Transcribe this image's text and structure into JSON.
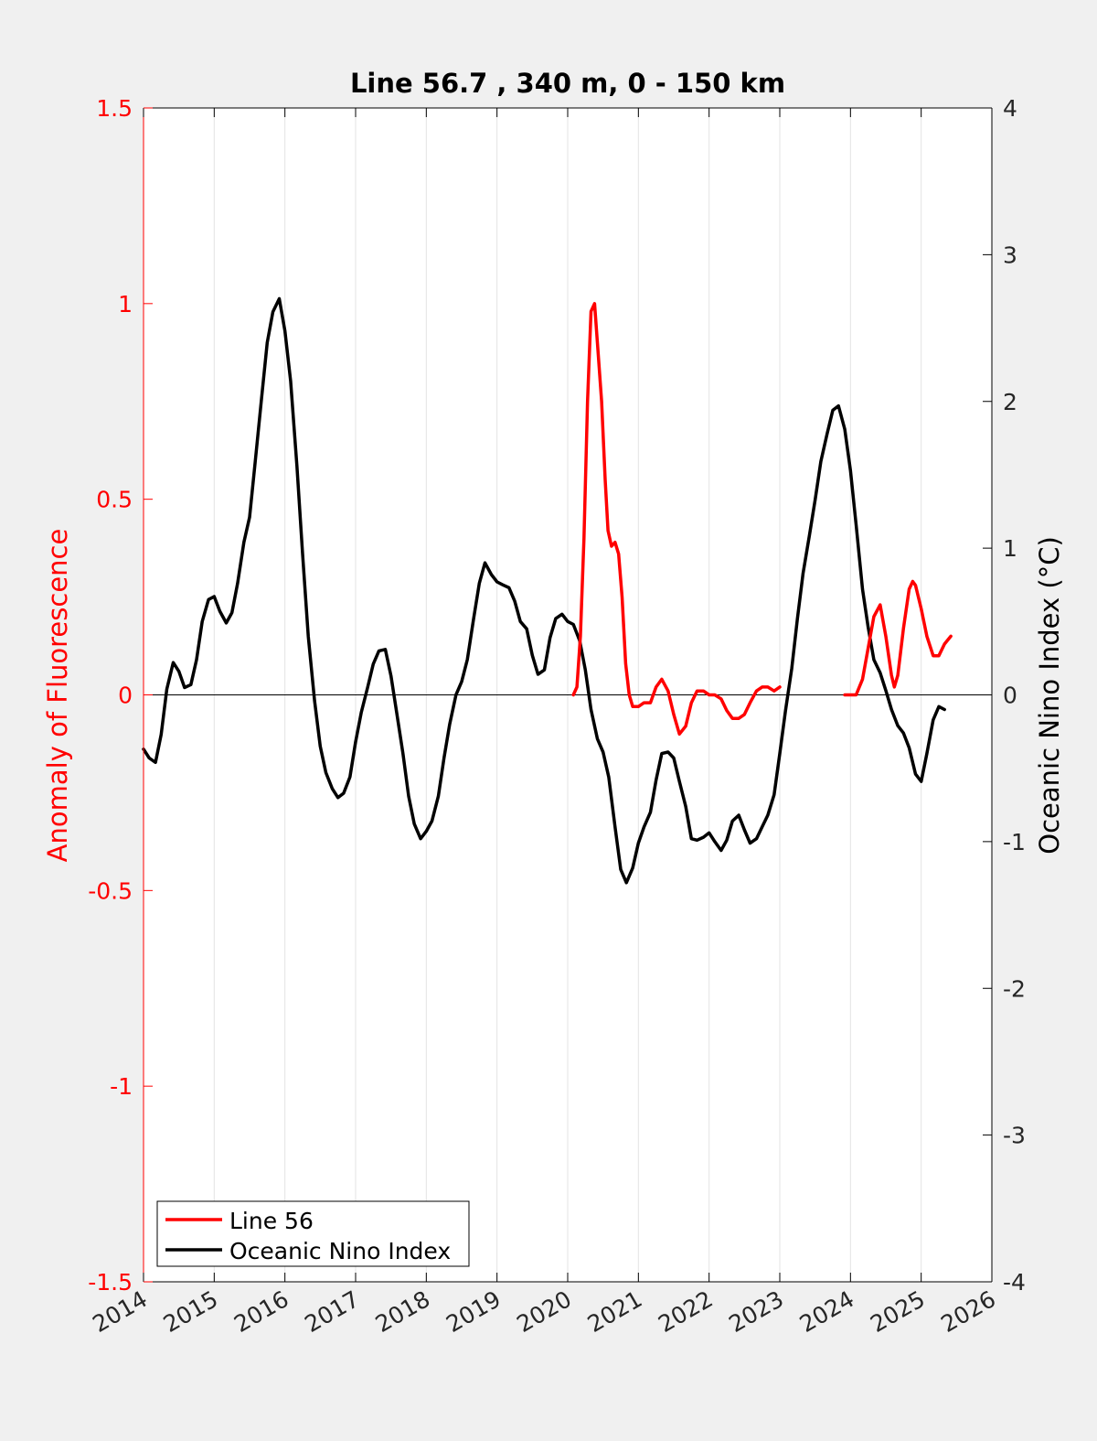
{
  "chart_data": {
    "type": "line",
    "title": "Line 56.7 , 340 m, 0 - 150 km",
    "xlabel": "",
    "xlim": [
      2014,
      2026
    ],
    "xticks": [
      "2014",
      "2015",
      "2016",
      "2017",
      "2018",
      "2019",
      "2020",
      "2021",
      "2022",
      "2023",
      "2024",
      "2025",
      "2026"
    ],
    "grid": "vertical",
    "legend_position": "bottom-left",
    "left_axis": {
      "label": "Anomaly of Fluorescence",
      "color": "#ff0000",
      "ylim": [
        -1.5,
        1.5
      ],
      "ticks": [
        "-1.5",
        "-1",
        "-0.5",
        "0",
        "0.5",
        "1",
        "1.5"
      ]
    },
    "right_axis": {
      "label": "Oceanic Nino Index (°C)",
      "color": "#000000",
      "ylim": [
        -4,
        4
      ],
      "ticks": [
        "-4",
        "-3",
        "-2",
        "-1",
        "0",
        "1",
        "2",
        "3",
        "4"
      ]
    },
    "series": [
      {
        "name": "Line 56",
        "color": "#ff0000",
        "axis": "left",
        "segments": [
          {
            "x": [
              2020.08,
              2020.13,
              2020.18,
              2020.23,
              2020.28,
              2020.33,
              2020.38,
              2020.42,
              2020.48,
              2020.53,
              2020.57,
              2020.62,
              2020.67,
              2020.72,
              2020.77,
              2020.82,
              2020.87,
              2020.92,
              2021.0,
              2021.08,
              2021.17,
              2021.25,
              2021.33,
              2021.42,
              2021.5,
              2021.58,
              2021.67,
              2021.75,
              2021.83,
              2021.92,
              2022.0,
              2022.08,
              2022.17,
              2022.25,
              2022.33,
              2022.42,
              2022.5,
              2022.58,
              2022.67,
              2022.75,
              2022.83,
              2022.92,
              2023.0
            ],
            "y": [
              0.0,
              0.02,
              0.15,
              0.4,
              0.75,
              0.98,
              1.0,
              0.9,
              0.75,
              0.55,
              0.42,
              0.38,
              0.39,
              0.36,
              0.25,
              0.08,
              0.0,
              -0.03,
              -0.03,
              -0.02,
              -0.02,
              0.02,
              0.04,
              0.01,
              -0.05,
              -0.1,
              -0.08,
              -0.02,
              0.01,
              0.01,
              0.0,
              0.0,
              -0.01,
              -0.04,
              -0.06,
              -0.06,
              -0.05,
              -0.02,
              0.01,
              0.02,
              0.02,
              0.01,
              0.02
            ]
          },
          {
            "x": [
              2023.92,
              2024.0,
              2024.08,
              2024.17,
              2024.25,
              2024.33,
              2024.42,
              2024.5,
              2024.58,
              2024.62,
              2024.67,
              2024.75,
              2024.83,
              2024.88,
              2024.92,
              2025.0,
              2025.08,
              2025.17,
              2025.25,
              2025.33,
              2025.42
            ],
            "y": [
              0.0,
              0.0,
              0.0,
              0.04,
              0.12,
              0.2,
              0.23,
              0.15,
              0.05,
              0.02,
              0.05,
              0.17,
              0.27,
              0.29,
              0.28,
              0.22,
              0.15,
              0.1,
              0.1,
              0.13,
              0.15
            ]
          }
        ]
      },
      {
        "name": "Oceanic Nino Index",
        "color": "#000000",
        "axis": "right",
        "segments": [
          {
            "x": [
              2014.0,
              2014.08,
              2014.17,
              2014.25,
              2014.33,
              2014.42,
              2014.5,
              2014.58,
              2014.67,
              2014.75,
              2014.83,
              2014.92,
              2015.0,
              2015.08,
              2015.17,
              2015.25,
              2015.33,
              2015.42,
              2015.5,
              2015.58,
              2015.67,
              2015.75,
              2015.83,
              2015.92,
              2016.0,
              2016.08,
              2016.17,
              2016.25,
              2016.33,
              2016.42,
              2016.5,
              2016.58,
              2016.67,
              2016.75,
              2016.83,
              2016.92,
              2017.0,
              2017.08,
              2017.17,
              2017.25,
              2017.33,
              2017.42,
              2017.5,
              2017.58,
              2017.67,
              2017.75,
              2017.83,
              2017.92,
              2018.0,
              2018.08,
              2018.17,
              2018.25,
              2018.33,
              2018.42,
              2018.5,
              2018.58,
              2018.67,
              2018.75,
              2018.83,
              2018.92,
              2019.0,
              2019.08,
              2019.17,
              2019.25,
              2019.33,
              2019.42,
              2019.5,
              2019.58,
              2019.67,
              2019.75,
              2019.83,
              2019.92,
              2020.0,
              2020.08,
              2020.17,
              2020.25,
              2020.33,
              2020.42,
              2020.5,
              2020.58,
              2020.67,
              2020.75,
              2020.83,
              2020.92,
              2021.0,
              2021.08,
              2021.17,
              2021.25,
              2021.33,
              2021.42,
              2021.5,
              2021.58,
              2021.67,
              2021.75,
              2021.83,
              2021.92,
              2022.0,
              2022.08,
              2022.17,
              2022.25,
              2022.33,
              2022.42,
              2022.5,
              2022.58,
              2022.67,
              2022.75,
              2022.83,
              2022.92,
              2023.0,
              2023.08,
              2023.17,
              2023.25,
              2023.33,
              2023.42,
              2023.5,
              2023.58,
              2023.67,
              2023.75,
              2023.83,
              2023.92,
              2024.0,
              2024.08,
              2024.17,
              2024.25,
              2024.33,
              2024.42,
              2024.5,
              2024.58,
              2024.67,
              2024.75,
              2024.83,
              2024.92,
              2025.0,
              2025.08,
              2025.17,
              2025.25,
              2025.33
            ],
            "y": [
              -0.37,
              -0.43,
              -0.46,
              -0.27,
              0.04,
              0.22,
              0.16,
              0.05,
              0.07,
              0.24,
              0.5,
              0.65,
              0.67,
              0.57,
              0.49,
              0.56,
              0.76,
              1.04,
              1.21,
              1.59,
              2.02,
              2.4,
              2.61,
              2.7,
              2.48,
              2.14,
              1.56,
              0.96,
              0.4,
              -0.04,
              -0.35,
              -0.53,
              -0.64,
              -0.7,
              -0.67,
              -0.56,
              -0.32,
              -0.12,
              0.05,
              0.21,
              0.3,
              0.31,
              0.13,
              -0.12,
              -0.4,
              -0.69,
              -0.88,
              -0.98,
              -0.93,
              -0.86,
              -0.69,
              -0.43,
              -0.2,
              0.0,
              0.09,
              0.24,
              0.52,
              0.76,
              0.9,
              0.82,
              0.77,
              0.75,
              0.73,
              0.64,
              0.5,
              0.45,
              0.27,
              0.14,
              0.17,
              0.39,
              0.52,
              0.55,
              0.5,
              0.48,
              0.37,
              0.17,
              -0.1,
              -0.3,
              -0.39,
              -0.56,
              -0.9,
              -1.19,
              -1.28,
              -1.18,
              -1.01,
              -0.9,
              -0.8,
              -0.58,
              -0.4,
              -0.39,
              -0.43,
              -0.59,
              -0.76,
              -0.98,
              -0.99,
              -0.97,
              -0.94,
              -1.0,
              -1.06,
              -0.99,
              -0.86,
              -0.82,
              -0.92,
              -1.01,
              -0.98,
              -0.9,
              -0.82,
              -0.68,
              -0.4,
              -0.11,
              0.18,
              0.52,
              0.83,
              1.09,
              1.33,
              1.59,
              1.78,
              1.94,
              1.97,
              1.81,
              1.53,
              1.16,
              0.72,
              0.46,
              0.24,
              0.15,
              0.03,
              -0.1,
              -0.21,
              -0.26,
              -0.36,
              -0.54,
              -0.59,
              -0.4,
              -0.17,
              -0.08,
              -0.1
            ]
          }
        ]
      }
    ]
  }
}
